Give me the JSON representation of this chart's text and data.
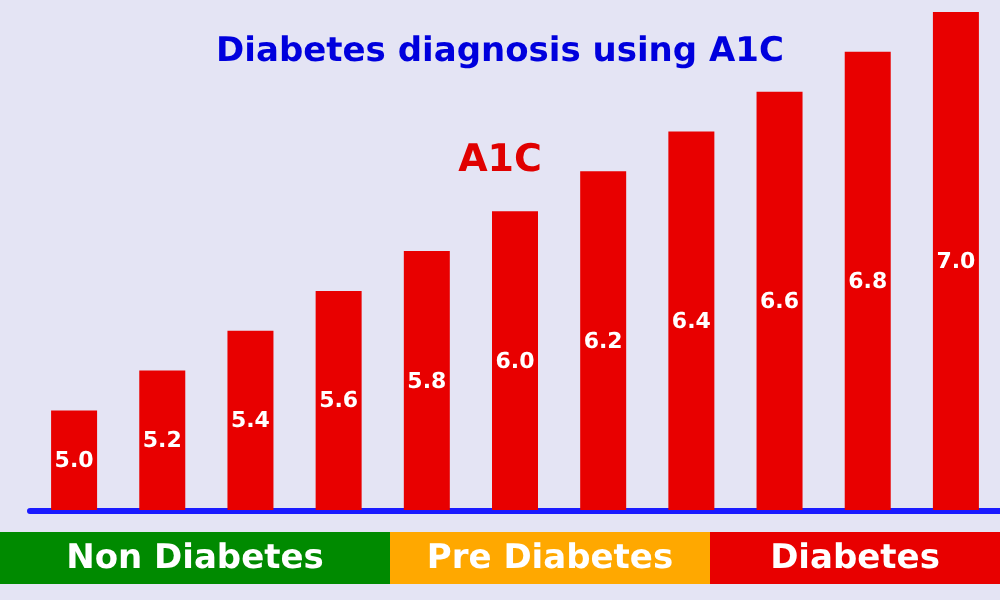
{
  "chart_data": {
    "type": "bar",
    "title": "Diabetes diagnosis using A1C",
    "categories": [
      null,
      null,
      null,
      null,
      null,
      null,
      null,
      null,
      null,
      null,
      null
    ],
    "values": [
      5.0,
      5.2,
      5.4,
      5.6,
      5.8,
      6.0,
      6.2,
      6.4,
      6.6,
      6.8,
      7.0
    ],
    "value_labels": [
      "5.0",
      "5.2",
      "5.4",
      "5.6",
      "5.8",
      "6.0",
      "6.2",
      "6.4",
      "6.6",
      "6.8",
      "7.0"
    ],
    "color": "#e80000",
    "ylim": [
      4.5,
      7.0
    ],
    "tick_labels": false,
    "grid": false,
    "annotations": [
      "A1C",
      "Non Diabetes",
      "Pre Diabetes",
      "Diabetes"
    ]
  }
}
